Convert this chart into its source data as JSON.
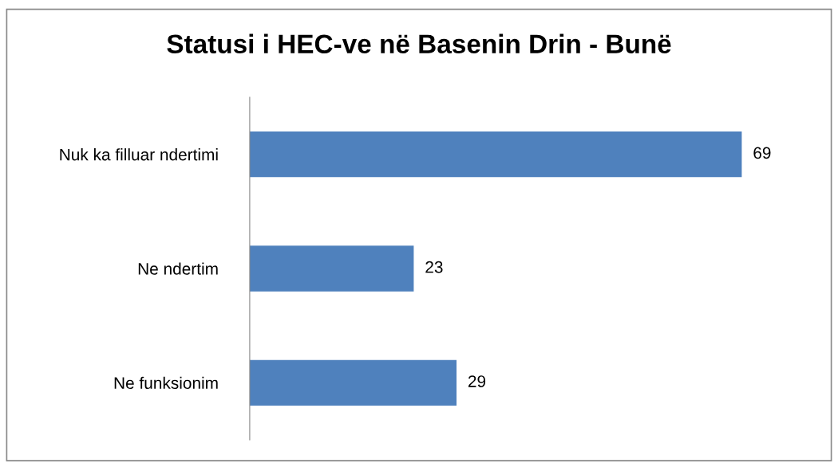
{
  "chart_data": {
    "type": "bar",
    "orientation": "horizontal",
    "title": "Statusi i HEC-ve në Basenin Drin - Bunë",
    "categories": [
      "Nuk ka filluar ndertimi",
      "Ne ndertim",
      "Ne funksionim"
    ],
    "values": [
      69,
      23,
      29
    ],
    "color": "#4f81bd",
    "data_labels": true,
    "grid": false,
    "legend": false
  }
}
